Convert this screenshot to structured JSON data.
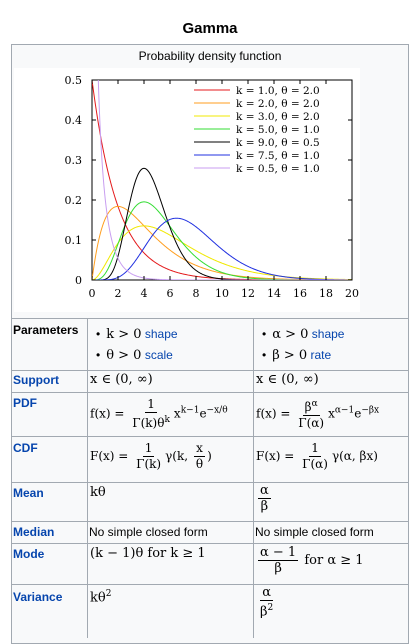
{
  "title": "Gamma",
  "caption": "Probability density function",
  "chart_data": {
    "type": "line",
    "xlim": [
      0,
      20
    ],
    "ylim": [
      0,
      0.5
    ],
    "x_ticks": [
      "0",
      "2",
      "4",
      "6",
      "8",
      "10",
      "12",
      "14",
      "16",
      "18",
      "20"
    ],
    "y_ticks": [
      "0",
      "0.1",
      "0.2",
      "0.3",
      "0.4",
      "0.5"
    ],
    "series": [
      {
        "name": "k = 1.0, θ = 2.0",
        "k": 1.0,
        "theta": 2.0,
        "color": "#e41a1c"
      },
      {
        "name": "k = 2.0, θ = 2.0",
        "k": 2.0,
        "theta": 2.0,
        "color": "#ff9e1f"
      },
      {
        "name": "k = 3.0, θ = 2.0",
        "k": 3.0,
        "theta": 2.0,
        "color": "#f0e800"
      },
      {
        "name": "k = 5.0, θ = 1.0",
        "k": 5.0,
        "theta": 1.0,
        "color": "#33dd33"
      },
      {
        "name": "k = 9.0, θ = 0.5",
        "k": 9.0,
        "theta": 0.5,
        "color": "#000000"
      },
      {
        "name": "k = 7.5, θ = 1.0",
        "k": 7.5,
        "theta": 1.0,
        "color": "#2030e0"
      },
      {
        "name": "k = 0.5, θ = 1.0",
        "k": 0.5,
        "theta": 1.0,
        "color": "#c89ef0"
      }
    ],
    "legend_position": "top-right",
    "grid": false
  },
  "parameters": {
    "label": "Parameters",
    "left": [
      {
        "math": "k > 0",
        "link": "shape"
      },
      {
        "math": "θ > 0",
        "link": "scale"
      }
    ],
    "right": [
      {
        "math": "α > 0",
        "link": "shape"
      },
      {
        "math": "β > 0",
        "link": "rate"
      }
    ]
  },
  "rows": {
    "support": {
      "label": "Support",
      "left": "x ∈ (0, ∞)",
      "right": "x ∈ (0, ∞)"
    },
    "pdf": {
      "label": "PDF"
    },
    "cdf": {
      "label": "CDF"
    },
    "mean": {
      "label": "Mean",
      "left": "kθ",
      "right_num": "α",
      "right_den": "β"
    },
    "median": {
      "label": "Median",
      "left": "No simple closed form",
      "right": "No simple closed form"
    },
    "mode": {
      "label": "Mode",
      "left": "(k − 1)θ for k ≥ 1",
      "right_num": "α − 1",
      "right_den": "β",
      "right_tail": "for α ≥ 1"
    },
    "variance": {
      "label": "Variance",
      "left": "kθ",
      "left_sup": "2",
      "right_num": "α",
      "right_den": "β",
      "right_den_sup": "2"
    }
  }
}
